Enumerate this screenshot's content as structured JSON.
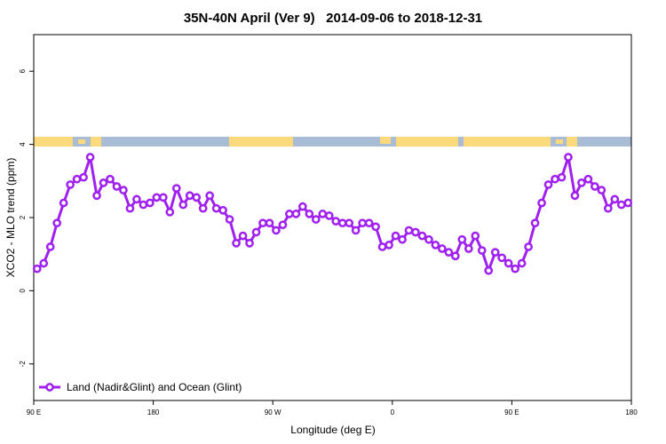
{
  "chart_data": {
    "type": "line",
    "title": "35N-40N April (Ver 9)   2014-09-06 to 2018-12-31",
    "x_label": "Longitude (deg E)",
    "y_label": "XCO2 - MLO trend (ppm)",
    "x": [
      92.5,
      97.5,
      102.5,
      107.5,
      112.5,
      117.5,
      122.5,
      127.5,
      132.5,
      137.5,
      142.5,
      147.5,
      152.5,
      157.5,
      162.5,
      167.5,
      172.5,
      177.5,
      182.5,
      187.5,
      192.5,
      197.5,
      202.5,
      207.5,
      212.5,
      217.5,
      222.5,
      227.5,
      232.5,
      237.5,
      242.5,
      247.5,
      252.5,
      257.5,
      262.5,
      267.5,
      272.5,
      277.5,
      282.5,
      287.5,
      292.5,
      297.5,
      302.5,
      307.5,
      312.5,
      317.5,
      322.5,
      327.5,
      332.5,
      337.5,
      342.5,
      347.5,
      352.5,
      357.5,
      362.5,
      367.5,
      372.5,
      377.5,
      382.5,
      387.5,
      392.5,
      397.5,
      402.5,
      407.5,
      412.5,
      417.5,
      422.5,
      427.5,
      432.5,
      437.5,
      442.5,
      447.5,
      452.5,
      457.5,
      462.5,
      467.5,
      472.5,
      477.5,
      482.5,
      487.5,
      492.5,
      497.5,
      502.5,
      507.5,
      512.5,
      517.5,
      522.5,
      527.5,
      532.5,
      537.5
    ],
    "series": [
      {
        "name": "Land (Nadir&Glint) and Ocean (Glint)",
        "color": "#a020f0",
        "values": [
          0.6,
          0.75,
          1.2,
          1.85,
          2.4,
          2.9,
          3.05,
          3.1,
          3.65,
          2.6,
          2.95,
          3.05,
          2.85,
          2.75,
          2.25,
          2.5,
          2.35,
          2.4,
          2.55,
          2.55,
          2.15,
          2.8,
          2.35,
          2.6,
          2.55,
          2.25,
          2.6,
          2.25,
          2.2,
          1.95,
          1.3,
          1.5,
          1.3,
          1.6,
          1.85,
          1.85,
          1.65,
          1.8,
          2.1,
          2.1,
          2.3,
          2.1,
          1.95,
          2.1,
          2.05,
          1.9,
          1.85,
          1.85,
          1.65,
          1.85,
          1.85,
          1.75,
          1.2,
          1.25,
          1.5,
          1.4,
          1.65,
          1.6,
          1.5,
          1.4,
          1.25,
          1.15,
          1.05,
          0.95,
          1.4,
          1.15,
          1.5,
          1.1,
          0.55,
          1.05,
          0.9,
          0.75,
          0.6,
          0.75,
          1.2,
          1.85,
          2.4,
          2.9,
          3.05,
          3.1,
          3.65,
          2.6,
          2.95,
          3.05,
          2.85,
          2.75,
          2.25,
          2.5,
          2.35,
          2.4
        ]
      }
    ],
    "xlim": [
      90,
      540
    ],
    "xticks": [
      {
        "value": 90,
        "label": "90 E"
      },
      {
        "value": 180,
        "label": "180"
      },
      {
        "value": 270,
        "label": "90 W"
      },
      {
        "value": 360,
        "label": "0"
      },
      {
        "value": 450,
        "label": "90 E"
      },
      {
        "value": 540,
        "label": "180"
      }
    ],
    "ylim": [
      -3,
      7
    ],
    "yticks": [
      -2,
      0,
      2,
      4,
      6
    ],
    "legend": "bottom-left"
  }
}
